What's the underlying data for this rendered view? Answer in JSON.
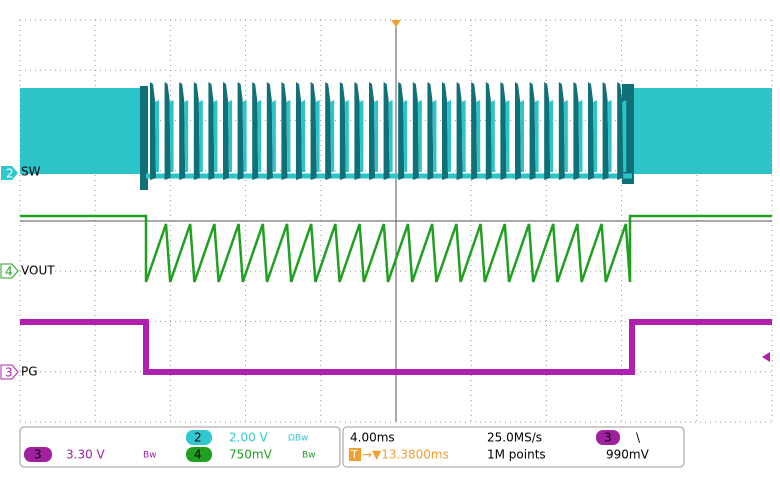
{
  "channels": [
    {
      "number": "2",
      "label": "SW"
    },
    {
      "number": "4",
      "label": "VOUT"
    },
    {
      "number": "3",
      "label": "PG"
    }
  ],
  "status": {
    "ch2": {
      "number": "2",
      "scale": "2.00 V",
      "flags": "ΩBw"
    },
    "ch3": {
      "number": "3",
      "scale": "3.30 V",
      "flags": "Bw"
    },
    "ch4": {
      "number": "4",
      "scale": "750mV",
      "flags": "Bw"
    },
    "timebase": "4.00ms",
    "sample_rate": "25.0MS/s",
    "record_length": "1M points",
    "trigger_icon": "T",
    "trigger_delay": "→▼13.3800ms",
    "trigger_source": "3",
    "trigger_slope": "\\",
    "trigger_level": "990mV"
  }
}
